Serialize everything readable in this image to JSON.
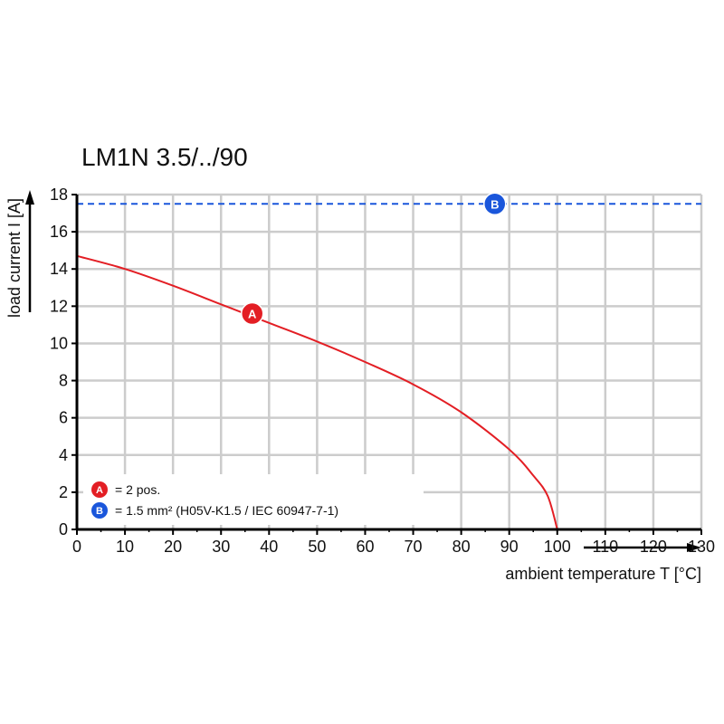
{
  "chart_data": {
    "type": "line",
    "title": "LM1N 3.5/../90",
    "xlabel": "ambient temperature T [°C]",
    "ylabel": "load current I [A]",
    "xlim": [
      0,
      130
    ],
    "ylim": [
      0,
      18
    ],
    "x_ticks": [
      "0",
      "10",
      "20",
      "30",
      "40",
      "50",
      "60",
      "70",
      "80",
      "90",
      "100",
      "110",
      "120",
      "130"
    ],
    "y_ticks": [
      "0",
      "2",
      "4",
      "6",
      "8",
      "10",
      "12",
      "14",
      "16",
      "18"
    ],
    "grid": true,
    "series": [
      {
        "name": "A",
        "color": "#e31e24",
        "style": "solid",
        "x": [
          0,
          10,
          20,
          30,
          40,
          50,
          60,
          70,
          80,
          90,
          95,
          98,
          100
        ],
        "y": [
          14.7,
          14.0,
          13.1,
          12.1,
          11.1,
          10.1,
          9.0,
          7.8,
          6.3,
          4.3,
          2.9,
          1.8,
          0
        ]
      },
      {
        "name": "B",
        "color": "#1a56db",
        "style": "dashed",
        "x": [
          0,
          130
        ],
        "y": [
          17.5,
          17.5
        ]
      }
    ],
    "markers": [
      {
        "label": "A",
        "x": 36.5,
        "y": 11.6,
        "color": "#e31e24"
      },
      {
        "label": "B",
        "x": 87,
        "y": 17.5,
        "color": "#1a56db"
      }
    ],
    "legend": [
      {
        "badge": "A",
        "text": "= 2 pos.",
        "color": "#e31e24"
      },
      {
        "badge": "B",
        "text": "= 1.5 mm² (H05V-K1.5 / IEC 60947-7-1)",
        "color": "#1a56db"
      }
    ],
    "legend_position": "bottom-left"
  }
}
